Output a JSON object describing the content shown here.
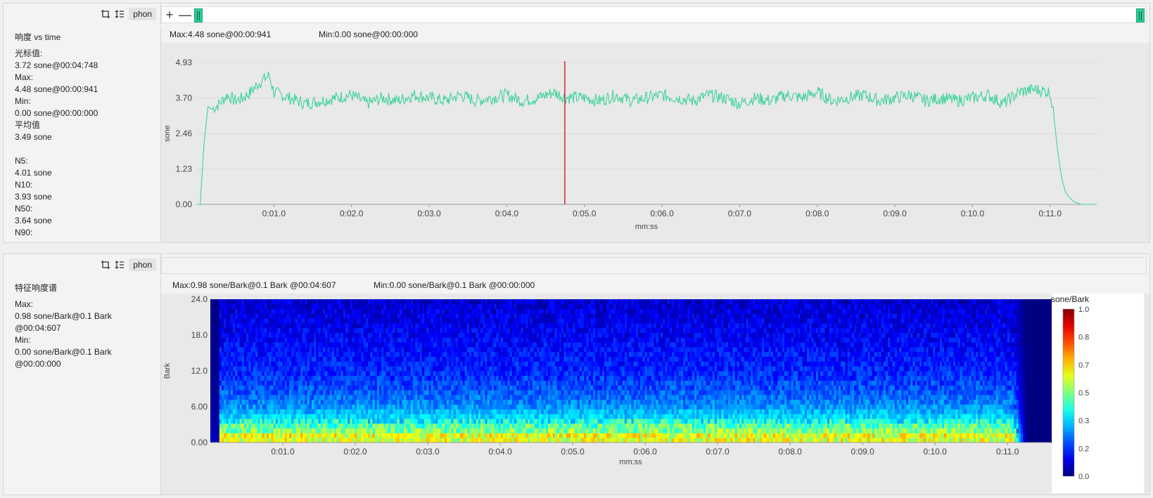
{
  "top_panel": {
    "toolbar": {
      "phon_label": "phon",
      "zoom_in": "+",
      "zoom_out": "—"
    },
    "side": {
      "title": "响度 vs time",
      "lines": [
        "光标值:",
        "3.72 sone@00:04:748",
        "Max:",
        "4.48 sone@00:00:941",
        "Min:",
        "0.00 sone@00:00:000",
        "平均值",
        "3.49 sone",
        "",
        "N5:",
        "4.01 sone",
        "N10:",
        "3.93 sone",
        "N50:",
        "3.64 sone",
        "N90:"
      ]
    },
    "stats": {
      "max": "Max:4.48 sone@00:00:941",
      "min": "Min:0.00 sone@00:00:000"
    }
  },
  "bottom_panel": {
    "toolbar": {
      "phon_label": "phon"
    },
    "side": {
      "title": "特征响度谱",
      "lines": [
        "Max:",
        "0.98 sone/Bark@0.1 Bark",
        "@00:04:607",
        "Min:",
        "0.00 sone/Bark@0.1 Bark",
        "@00:00:000"
      ]
    },
    "stats": {
      "max": "Max:0.98 sone/Bark@0.1 Bark @00:04:607",
      "min": "Min:0.00 sone/Bark@0.1 Bark @00:00:000"
    }
  },
  "chart_data": [
    {
      "type": "line",
      "xlabel": "mm:ss",
      "ylabel": "sone",
      "x_ticks": [
        "0:01.0",
        "0:02.0",
        "0:03.0",
        "0:04.0",
        "0:05.0",
        "0:06.0",
        "0:07.0",
        "0:08.0",
        "0:09.0",
        "0:10.0",
        "0:11.0"
      ],
      "y_ticks": [
        "0.00",
        "1.23",
        "2.46",
        "3.70",
        "4.93"
      ],
      "xlim": [
        0.0,
        11.6
      ],
      "ylim": [
        0,
        4.93
      ],
      "cursor_x": 4.748,
      "grid": true,
      "colors": {
        "line": "#3fd39a",
        "cursor": "#c00000"
      },
      "series": [
        {
          "x": [
            0.0,
            0.05,
            0.1,
            0.15,
            0.2,
            0.3,
            0.4,
            0.5,
            0.6,
            0.7,
            0.8,
            0.94,
            1.0,
            1.2,
            1.4,
            1.6,
            1.8,
            2.0,
            2.2,
            2.4,
            2.6,
            2.8,
            3.0,
            3.2,
            3.4,
            3.6,
            3.8,
            4.0,
            4.2,
            4.4,
            4.6,
            4.75,
            5.0,
            5.2,
            5.4,
            5.6,
            5.8,
            6.0,
            6.2,
            6.4,
            6.6,
            6.8,
            7.0,
            7.2,
            7.4,
            7.6,
            7.8,
            8.0,
            8.2,
            8.4,
            8.6,
            8.8,
            9.0,
            9.2,
            9.4,
            9.6,
            9.8,
            10.0,
            10.2,
            10.4,
            10.6,
            10.8,
            11.0,
            11.05,
            11.1,
            11.15,
            11.2,
            11.3,
            11.4,
            11.5,
            11.6
          ],
          "y": [
            0.0,
            0.0,
            2.1,
            3.4,
            3.3,
            3.5,
            3.8,
            3.6,
            3.7,
            3.9,
            4.2,
            4.48,
            3.9,
            3.7,
            3.5,
            3.6,
            3.7,
            3.8,
            3.5,
            3.7,
            3.6,
            3.8,
            3.7,
            3.6,
            3.8,
            3.6,
            3.7,
            3.8,
            3.6,
            3.7,
            3.9,
            3.72,
            3.7,
            3.6,
            3.8,
            3.6,
            3.7,
            3.8,
            3.7,
            3.6,
            3.8,
            3.7,
            3.5,
            3.7,
            3.6,
            3.8,
            3.7,
            3.9,
            3.6,
            3.7,
            3.8,
            3.6,
            3.7,
            3.8,
            3.6,
            3.7,
            3.6,
            3.7,
            3.8,
            3.5,
            3.9,
            4.0,
            3.9,
            3.0,
            1.8,
            0.9,
            0.4,
            0.1,
            0.0,
            0.0,
            0.0
          ]
        }
      ]
    },
    {
      "type": "heatmap",
      "xlabel": "mm:ss",
      "ylabel": "Bark",
      "x_ticks": [
        "0:01.0",
        "0:02.0",
        "0:03.0",
        "0:04.0",
        "0:05.0",
        "0:06.0",
        "0:07.0",
        "0:08.0",
        "0:09.0",
        "0:10.0",
        "0:11.0"
      ],
      "y_ticks": [
        "0.00",
        "6.00",
        "12.0",
        "18.0",
        "24.0"
      ],
      "xlim": [
        0.0,
        11.6
      ],
      "ylim": [
        0,
        24
      ],
      "colorbar": {
        "label": "sone/Bark",
        "ticks": [
          "0.0",
          "0.2",
          "0.3",
          "0.5",
          "0.7",
          "0.8",
          "1.0"
        ]
      },
      "profile_bark": [
        0,
        0.5,
        1,
        1.5,
        2,
        3,
        4,
        6,
        8,
        12,
        16,
        20,
        24
      ],
      "profile_value": [
        0.55,
        0.6,
        0.62,
        0.58,
        0.5,
        0.45,
        0.35,
        0.27,
        0.22,
        0.16,
        0.13,
        0.1,
        0.08
      ]
    }
  ]
}
